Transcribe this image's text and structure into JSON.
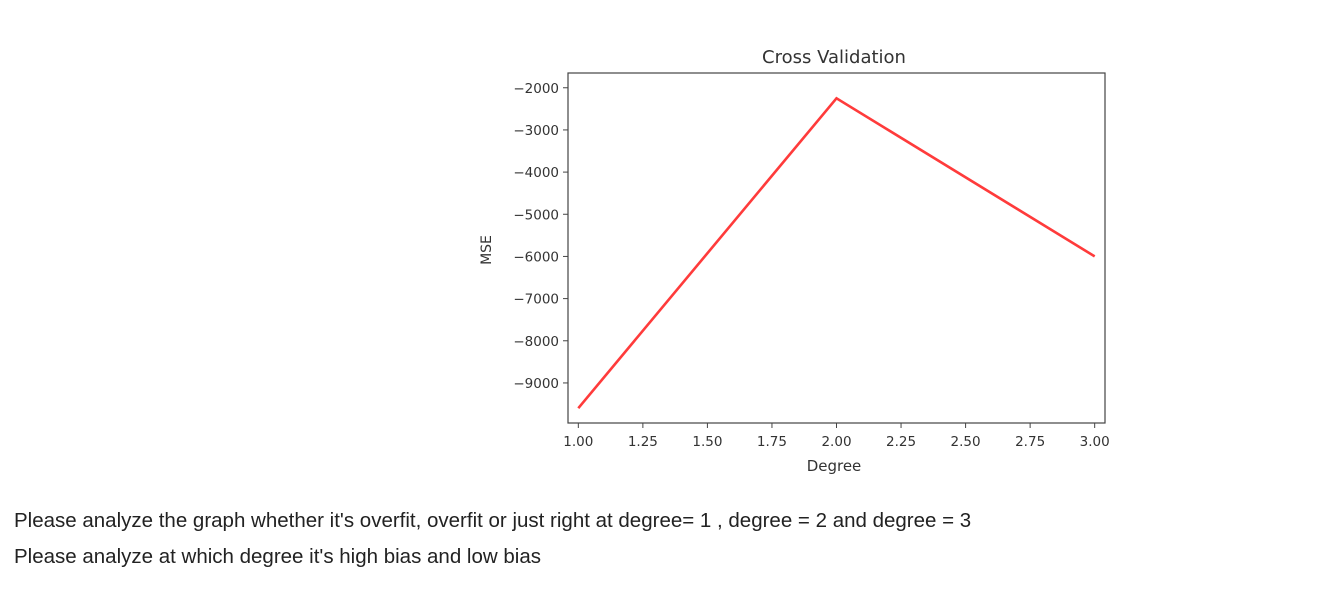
{
  "chart_data": {
    "type": "line",
    "title": "Cross Validation",
    "xlabel": "Degree",
    "ylabel": "MSE",
    "x": [
      1,
      2,
      3
    ],
    "series": [
      {
        "values": [
          -9600,
          -2250,
          -6000
        ],
        "color": "#ff3b3b"
      }
    ],
    "xlim": [
      0.96,
      3.04
    ],
    "ylim": [
      -9950,
      -1650
    ],
    "xticks": [
      1.0,
      1.25,
      1.5,
      1.75,
      2.0,
      2.25,
      2.5,
      2.75,
      3.0
    ],
    "xtick_labels": [
      "1.00",
      "1.25",
      "1.50",
      "1.75",
      "2.00",
      "2.25",
      "2.50",
      "2.75",
      "3.00"
    ],
    "yticks": [
      -2000,
      -3000,
      -4000,
      -5000,
      -6000,
      -7000,
      -8000,
      -9000
    ],
    "ytick_labels": [
      "−2000",
      "−3000",
      "−4000",
      "−5000",
      "−6000",
      "−7000",
      "−8000",
      "−9000"
    ],
    "grid": false
  },
  "questions": [
    "Please analyze the graph whether it's overfit, overfit or just right at degree= 1 , degree = 2 and degree = 3",
    "Please analyze at which degree it's high bias and low bias"
  ]
}
